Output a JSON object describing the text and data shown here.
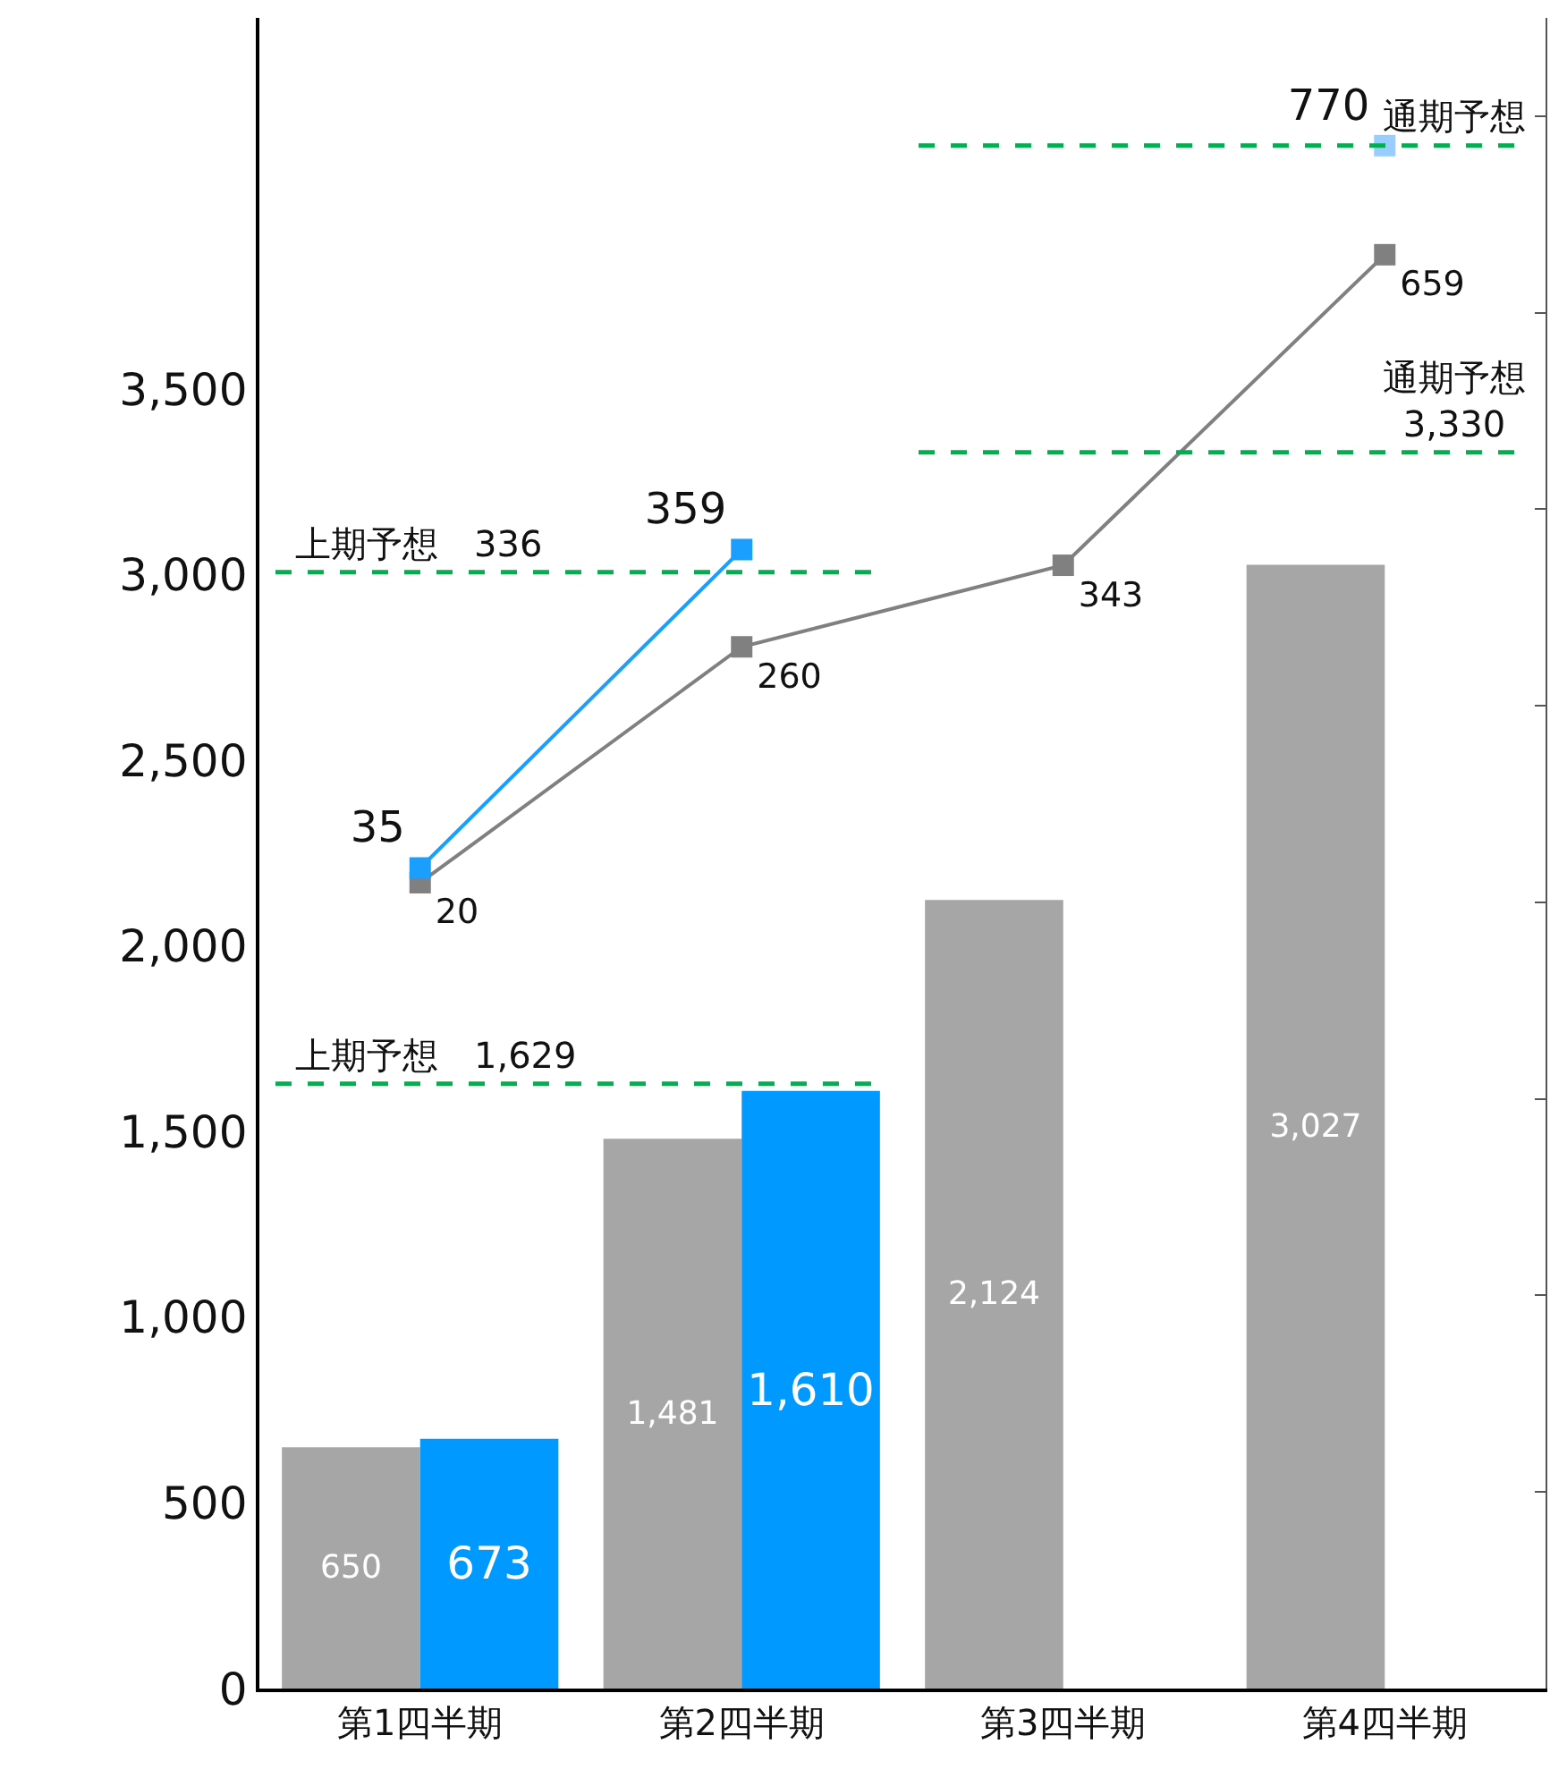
{
  "chart_data": {
    "type": "bar",
    "categories": [
      "第1四半期",
      "第2四半期",
      "第3四半期",
      "第4四半期"
    ],
    "ylim": [
      0,
      4500
    ],
    "yticks": [
      0,
      500,
      {
        "value": 1000,
        "label": "1,000"
      },
      {
        "value": 1500,
        "label": "1,500"
      },
      {
        "value": 2000,
        "label": "2,000"
      },
      {
        "value": 2500,
        "label": "2,500"
      },
      {
        "value": 3000,
        "label": "3,000"
      },
      {
        "value": 3500,
        "label": "3,500"
      }
    ],
    "y2lim": [
      -800,
      900
    ],
    "y2ticks": [
      {
        "value": -800,
        "label": null
      },
      {
        "value": -600,
        "label": null
      },
      {
        "value": -400,
        "label": null
      },
      {
        "value": -200,
        "label": null
      },
      {
        "value": 0,
        "label": null
      },
      {
        "value": 200,
        "label": null
      },
      {
        "value": 400,
        "label": null
      },
      {
        "value": 600,
        "label": null
      },
      {
        "value": 800,
        "label": null
      }
    ],
    "marker": "square",
    "grid": false,
    "data_labels": true,
    "series": [
      {
        "color": "#a6a6a6",
        "values": [
          650,
          1481,
          2124,
          3027
        ],
        "value_labels": [
          "650",
          "1,481",
          "2,124",
          "3,027"
        ]
      },
      {
        "color": "#0099ff",
        "values": [
          673,
          1610,
          null,
          null
        ],
        "value_labels": [
          "673",
          "1,610",
          null,
          null
        ]
      },
      {
        "type": "line",
        "axis": "y2",
        "color": "#808080",
        "values": [
          20,
          260,
          343,
          659
        ]
      },
      {
        "type": "line",
        "axis": "y2",
        "color": "#1a9fff",
        "values": [
          35,
          359,
          null,
          null
        ]
      },
      {
        "type": "scatter",
        "axis": "y2",
        "color": "#99ccff",
        "values": [
          null,
          null,
          null,
          770
        ]
      }
    ],
    "ref_lines": [
      {
        "axis": "y2",
        "value": 336,
        "label": "上期予想　336",
        "color": "#00b050",
        "line_style": "dashed"
      },
      {
        "axis": "y2",
        "value": 770,
        "label": "通期予想",
        "color": "#00b050",
        "line_style": "dashed"
      },
      {
        "axis": "y",
        "value": 1629,
        "label": "上期予想　1,629",
        "color": "#00b050",
        "line_style": "dashed"
      },
      {
        "axis": "y",
        "value": 3330,
        "label": "通期予想\n3,330",
        "color": "#00b050",
        "line_style": "dashed"
      }
    ]
  }
}
